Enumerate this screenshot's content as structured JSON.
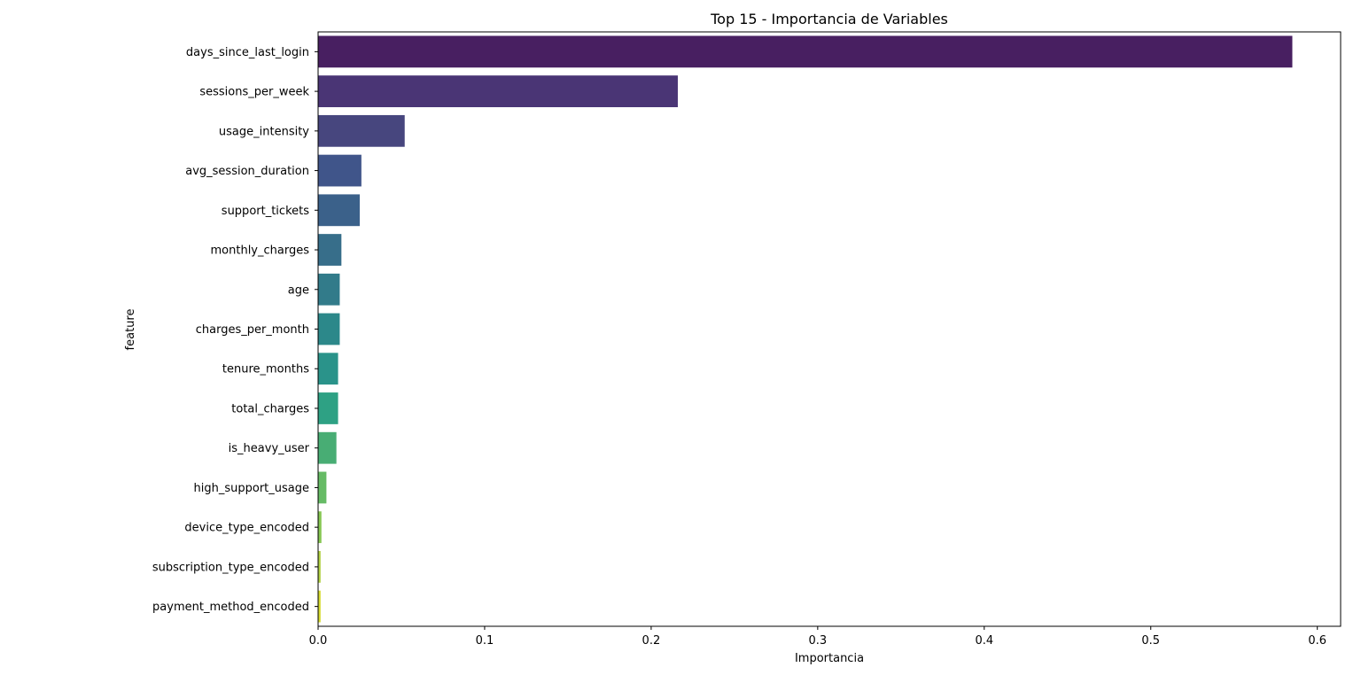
{
  "chart_data": {
    "type": "bar",
    "orientation": "horizontal",
    "title": "Top 15 - Importancia de Variables",
    "xlabel": "Importancia",
    "ylabel": "feature",
    "xlim": [
      0,
      0.614
    ],
    "xticks": [
      "0.0",
      "0.1",
      "0.2",
      "0.3",
      "0.4",
      "0.5",
      "0.6"
    ],
    "grid": false,
    "legend": false,
    "categories": [
      "days_since_last_login",
      "sessions_per_week",
      "usage_intensity",
      "avg_session_duration",
      "support_tickets",
      "monthly_charges",
      "age",
      "charges_per_month",
      "tenure_months",
      "total_charges",
      "is_heavy_user",
      "high_support_usage",
      "device_type_encoded",
      "subscription_type_encoded",
      "payment_method_encoded"
    ],
    "values": [
      0.585,
      0.216,
      0.052,
      0.026,
      0.025,
      0.014,
      0.013,
      0.013,
      0.012,
      0.012,
      0.011,
      0.005,
      0.002,
      0.0015,
      0.0015
    ],
    "colors": [
      "#481f61",
      "#4a3575",
      "#47467e",
      "#40558a",
      "#3b618a",
      "#376e8a",
      "#327b8a",
      "#2c888a",
      "#2a938a",
      "#2ea184",
      "#48ad74",
      "#66bb65",
      "#86c752",
      "#b1d143",
      "#d6db30"
    ]
  }
}
